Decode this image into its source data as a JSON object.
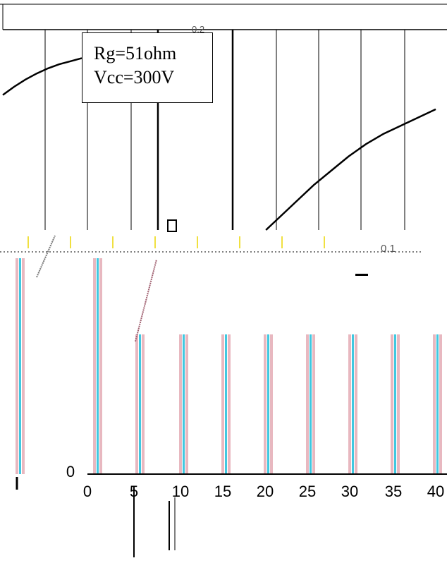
{
  "chart_data": {
    "type": "line",
    "title": "",
    "xlabel": "",
    "ylabel": "",
    "annotation_lines": [
      "Rg=51ohm",
      "Vcc=300V"
    ],
    "top_right_label": "0.2",
    "bottom_right_label": "0.1",
    "x_tick_labels": [
      "0",
      "5",
      "10",
      "15",
      "20",
      "25",
      "30",
      "35",
      "40"
    ],
    "y_tick_labels": [
      "0"
    ],
    "grid": true,
    "series": [
      {
        "x": [
          0,
          0.5,
          1,
          1.5,
          2,
          2.5,
          3,
          3.5
        ],
        "y": [
          0.66,
          0.7,
          0.735,
          0.765,
          0.79,
          0.81,
          0.825,
          0.84
        ]
      },
      {
        "x": [
          20.5,
          22,
          24,
          26,
          28,
          30,
          32,
          34,
          36,
          38,
          40
        ],
        "y": [
          0.0,
          0.06,
          0.14,
          0.22,
          0.29,
          0.36,
          0.42,
          0.47,
          0.51,
          0.55,
          0.59
        ]
      }
    ],
    "colors": {
      "line": "#000000",
      "grid": "#000000",
      "stripe_pink": "#e8b8c0",
      "stripe_cyan": "#40c8e0",
      "yellow_tick": "#f0e040"
    }
  }
}
